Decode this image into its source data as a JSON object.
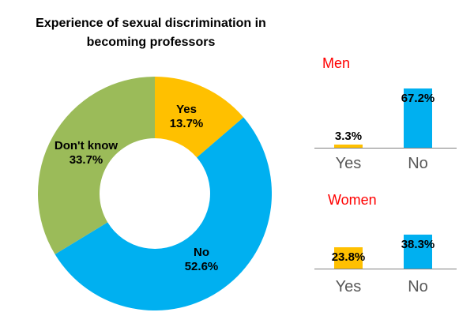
{
  "background_color": "#FFFFFF",
  "colors": {
    "yes_yellow": "#FFC000",
    "no_blue": "#00B0F0",
    "dont_know_green": "#9BBB59",
    "group_title_red": "#FF0000",
    "category_gray": "#595959",
    "axis_gray": "#808080",
    "text_black": "#000000"
  },
  "chart_data": [
    {
      "type": "pie",
      "subtype": "donut",
      "title": "Experience of sexual discrimination in becoming professors",
      "title_lines": [
        "Experience of sexual discrimination in",
        "becoming professors"
      ],
      "start_angle_deg": 0,
      "direction": "clockwise",
      "hole_ratio": 0.473,
      "legend_position": "none",
      "labels_inside_slices": true,
      "segments": [
        {
          "label": "Yes",
          "value": 13.7,
          "value_label": "13.7%",
          "color": "#FFC000"
        },
        {
          "label": "No",
          "value": 52.6,
          "value_label": "52.6%",
          "color": "#00B0F0"
        },
        {
          "label": "Don't know",
          "value": 33.7,
          "value_label": "33.7%",
          "color": "#9BBB59"
        }
      ]
    },
    {
      "type": "bar",
      "title": "Men",
      "title_color": "#FF0000",
      "categories": [
        "Yes",
        "No"
      ],
      "values": [
        3.3,
        67.2
      ],
      "value_labels": [
        "3.3%",
        "67.2%"
      ],
      "bar_colors": [
        "#FFC000",
        "#00B0F0"
      ],
      "ylim": [
        0,
        100
      ],
      "grid": false,
      "axis_color": "#808080",
      "category_label_color": "#595959"
    },
    {
      "type": "bar",
      "title": "Women",
      "title_color": "#FF0000",
      "categories": [
        "Yes",
        "No"
      ],
      "values": [
        23.8,
        38.3
      ],
      "value_labels": [
        "23.8%",
        "38.3%"
      ],
      "bar_colors": [
        "#FFC000",
        "#00B0F0"
      ],
      "ylim": [
        0,
        100
      ],
      "grid": false,
      "axis_color": "#808080",
      "category_label_color": "#595959"
    }
  ]
}
